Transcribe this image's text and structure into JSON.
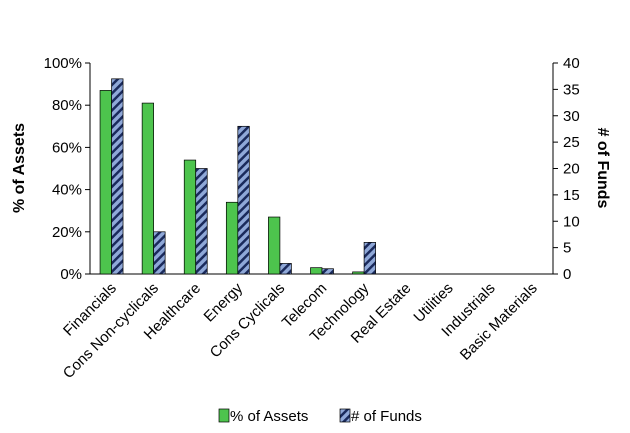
{
  "chart_data": {
    "type": "bar",
    "categories": [
      "Financials",
      "Cons Non-cyclicals",
      "Healthcare",
      "Energy",
      "Cons Cyclicals",
      "Telecom",
      "Technology",
      "Real Estate",
      "Utilities",
      "Industrials",
      "Basic Materials"
    ],
    "series": [
      {
        "name": "% of Assets",
        "axis": "left",
        "values": [
          87,
          81,
          54,
          34,
          27,
          3,
          1,
          0,
          0,
          0,
          0
        ],
        "color": "#4dc44d",
        "pattern": "solid"
      },
      {
        "name": "# of Funds",
        "axis": "right",
        "values": [
          37,
          8,
          20,
          28,
          2,
          1,
          6,
          0,
          0,
          0,
          0
        ],
        "color": "#8fa8d8",
        "pattern": "diagonal-stripes"
      }
    ],
    "ylabel": "% of Assets",
    "y2label": "# of Funds",
    "ylim": [
      0,
      100
    ],
    "y2lim": [
      0,
      40
    ],
    "yticks": [
      "0%",
      "20%",
      "40%",
      "60%",
      "80%",
      "100%"
    ],
    "y2ticks": [
      "0",
      "5",
      "10",
      "15",
      "20",
      "25",
      "30",
      "35",
      "40"
    ],
    "grid": false,
    "legend_position": "bottom"
  }
}
